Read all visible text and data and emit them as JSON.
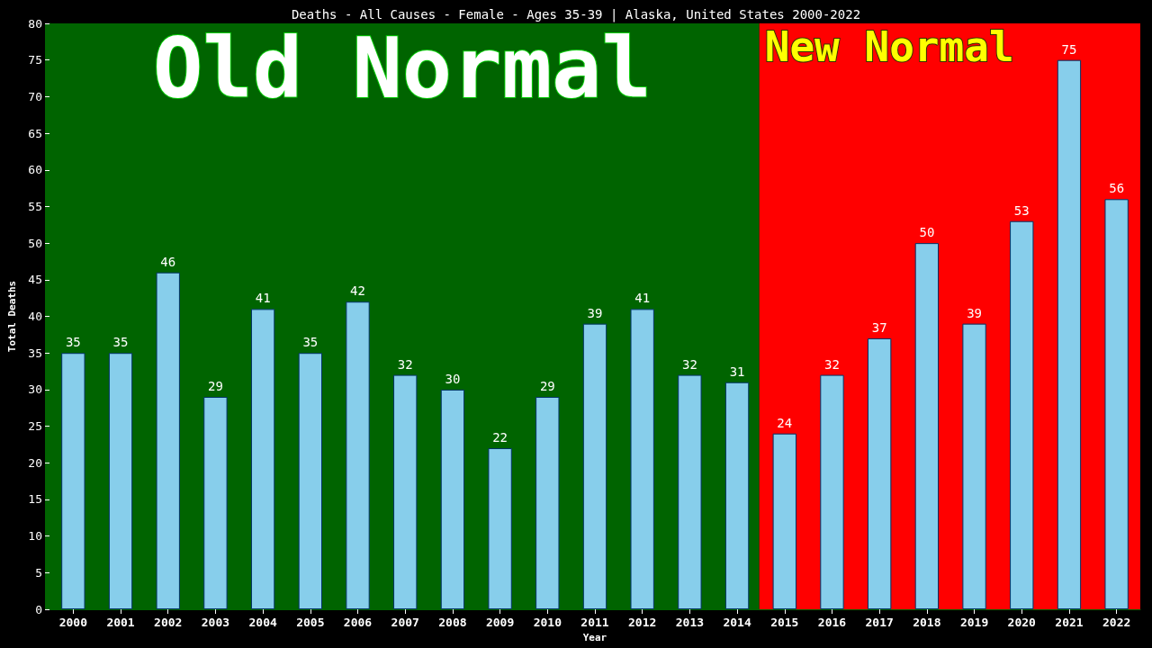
{
  "chart_data": {
    "type": "bar",
    "title": "Deaths - All Causes - Female - Ages 35-39 | Alaska, United States 2000-2022",
    "xlabel": "Year",
    "ylabel": "Total Deaths",
    "categories": [
      "2000",
      "2001",
      "2002",
      "2003",
      "2004",
      "2005",
      "2006",
      "2007",
      "2008",
      "2009",
      "2010",
      "2011",
      "2012",
      "2013",
      "2014",
      "2015",
      "2016",
      "2017",
      "2018",
      "2019",
      "2020",
      "2021",
      "2022"
    ],
    "values": [
      35,
      35,
      46,
      29,
      41,
      35,
      42,
      32,
      30,
      22,
      29,
      39,
      41,
      32,
      31,
      24,
      32,
      37,
      50,
      39,
      53,
      75,
      56
    ],
    "color": "#87ceeb",
    "data_labels": true,
    "ylim": [
      0,
      80
    ],
    "yticks": [
      0,
      5,
      10,
      15,
      20,
      25,
      30,
      35,
      40,
      45,
      50,
      55,
      60,
      65,
      70,
      75,
      80
    ],
    "grid": false,
    "bands": [
      {
        "axis": "x",
        "from": "2000",
        "to": "2014",
        "label": "Old Normal",
        "color": "#006400"
      },
      {
        "axis": "x",
        "from": "2015",
        "to": "2022",
        "label": "New Normal",
        "color": "#ff0000"
      }
    ]
  }
}
